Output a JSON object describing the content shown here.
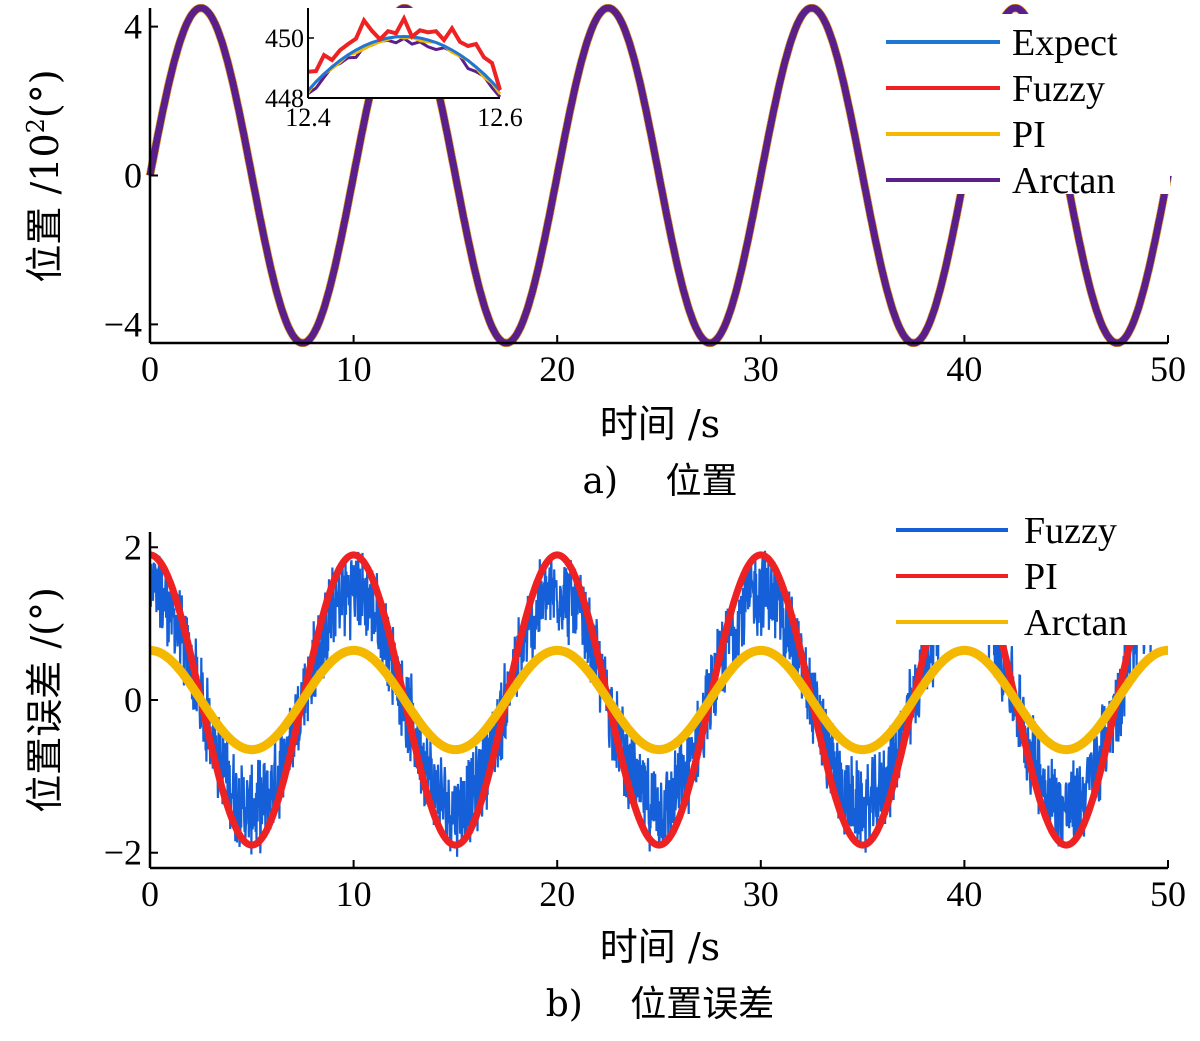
{
  "chart_data": [
    {
      "type": "line",
      "caption": "a)　 位置",
      "xlabel": "时间 /s",
      "ylabel_main": "位置 /10",
      "ylabel_exp": "2",
      "ylabel_unit": "(°)",
      "xlim": [
        0,
        50
      ],
      "ylim": [
        -4.5,
        4.5
      ],
      "xticks": [
        "0",
        "10",
        "20",
        "30",
        "40",
        "50"
      ],
      "yticks": [
        "−4",
        "0",
        "4"
      ],
      "ytick_values": [
        -4,
        0,
        4
      ],
      "xtick_values": [
        0,
        10,
        20,
        30,
        40,
        50
      ],
      "signal": {
        "amplitude": 4.5,
        "period": 10
      },
      "series": [
        {
          "name": "Expect",
          "color": "#1f77d4"
        },
        {
          "name": "Fuzzy",
          "color": "#ee2222"
        },
        {
          "name": "PI",
          "color": "#f5b800"
        },
        {
          "name": "Arctan",
          "color": "#5a1f8a"
        }
      ],
      "inset": {
        "xlim": [
          12.4,
          12.6
        ],
        "ylim": [
          448,
          451
        ],
        "xticks": [
          "12.4",
          "12.6"
        ],
        "xtick_values": [
          12.4,
          12.6
        ],
        "yticks": [
          "448",
          "450"
        ],
        "ytick_values": [
          448,
          450
        ]
      },
      "legend": "top-right",
      "grid": false
    },
    {
      "type": "line",
      "caption": "b)　 位置误差",
      "xlabel": "时间 /s",
      "ylabel": "位置误差 /(°)",
      "xlim": [
        0,
        50
      ],
      "ylim": [
        -2.2,
        2.2
      ],
      "xticks": [
        "0",
        "10",
        "20",
        "30",
        "40",
        "50"
      ],
      "xtick_values": [
        0,
        10,
        20,
        30,
        40,
        50
      ],
      "yticks": [
        "−2",
        "0",
        "2"
      ],
      "ytick_values": [
        -2,
        0,
        2
      ],
      "series": [
        {
          "name": "Fuzzy",
          "color": "#1560d8",
          "amplitude": 1.0,
          "offset": 0.6,
          "noise": 0.55,
          "period": 10
        },
        {
          "name": "PI",
          "color": "#ee2222",
          "amplitude": 1.9,
          "offset": 0.0,
          "noise": 0.05,
          "period": 10
        },
        {
          "name": "Arctan",
          "color": "#f5b800",
          "amplitude": 0.65,
          "offset": 0.0,
          "noise": 0.04,
          "period": 10
        }
      ],
      "legend": "top-right",
      "grid": false
    }
  ]
}
